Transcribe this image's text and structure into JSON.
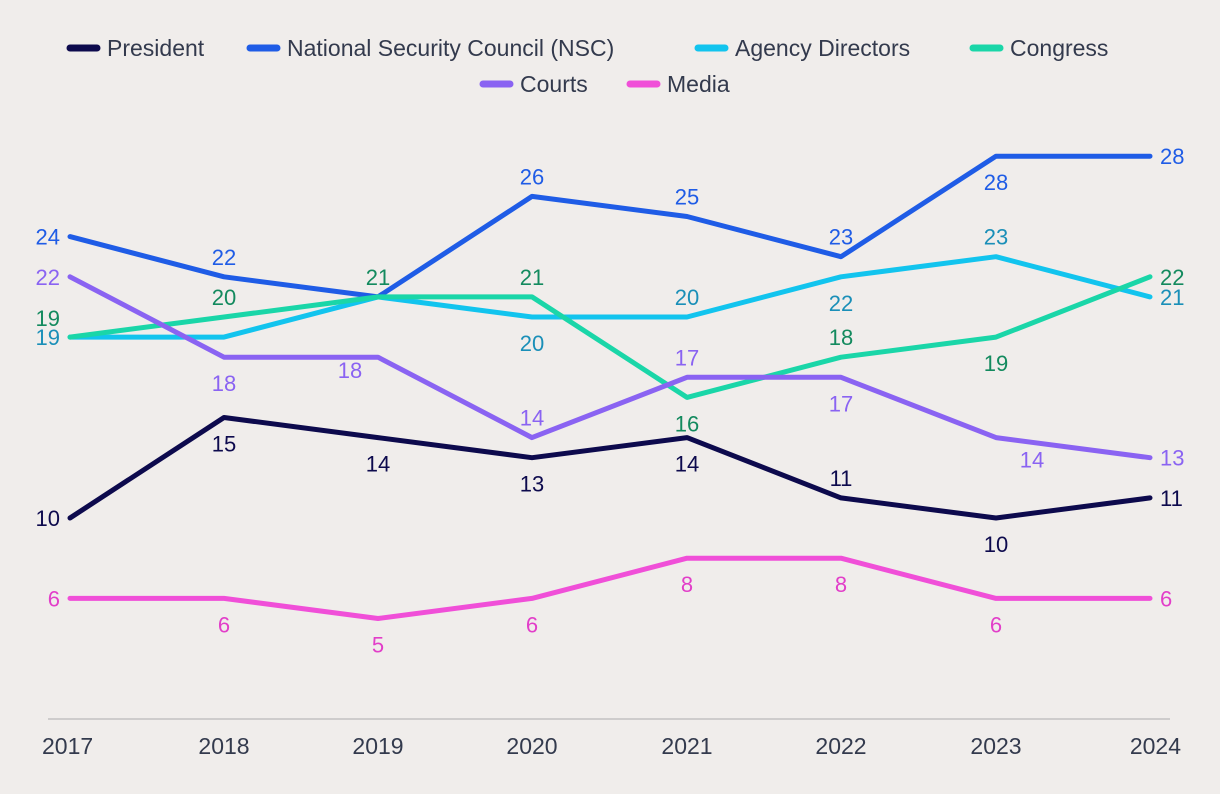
{
  "chart_data": {
    "type": "line",
    "title": "",
    "xlabel": "",
    "ylabel": "",
    "x": [
      "2017",
      "2018",
      "2019",
      "2020",
      "2021",
      "2022",
      "2023",
      "2024"
    ],
    "ylim": [
      0,
      30
    ],
    "grid": false,
    "legend_position": "top-center",
    "series": [
      {
        "name": "President",
        "color": "#0d0a4d",
        "label_color": "#0d0a4d",
        "values": [
          10,
          15,
          14,
          13,
          14,
          11,
          10,
          11
        ],
        "label_pos": [
          "left",
          "below",
          "below",
          "below",
          "below",
          "above",
          "below",
          "right"
        ]
      },
      {
        "name": "National Security Council (NSC)",
        "color": "#1f5ce6",
        "label_color": "#1f5ce6",
        "values": [
          24,
          22,
          21,
          26,
          25,
          23,
          28,
          28
        ],
        "label_pos": [
          "left",
          "above",
          "none",
          "above",
          "above",
          "above",
          "below",
          "right"
        ]
      },
      {
        "name": "Agency Directors",
        "color": "#12c4ee",
        "label_color": "#1a8fb8",
        "values": [
          19,
          19,
          21,
          20,
          20,
          22,
          23,
          21
        ],
        "label_pos": [
          "left",
          "none",
          "none",
          "below",
          "above",
          "below",
          "above",
          "right"
        ]
      },
      {
        "name": "Congress",
        "color": "#1ad6a8",
        "label_color": "#138a5e",
        "values": [
          19,
          20,
          21,
          21,
          16,
          18,
          19,
          22
        ],
        "label_pos": [
          "left-above",
          "above",
          "above",
          "above",
          "below",
          "above",
          "below",
          "right"
        ]
      },
      {
        "name": "Courts",
        "color": "#8a63f2",
        "label_color": "#8a63f2",
        "values": [
          22,
          18,
          18,
          14,
          17,
          17,
          14,
          13
        ],
        "label_pos": [
          "left",
          "below",
          "left-below",
          "above",
          "above",
          "below",
          "below-right",
          "right"
        ]
      },
      {
        "name": "Media",
        "color": "#f04fd8",
        "label_color": "#e23ec9",
        "values": [
          6,
          6,
          5,
          6,
          8,
          8,
          6,
          6
        ],
        "label_pos": [
          "left",
          "below",
          "below",
          "below",
          "below",
          "below",
          "below",
          "right"
        ]
      }
    ]
  }
}
